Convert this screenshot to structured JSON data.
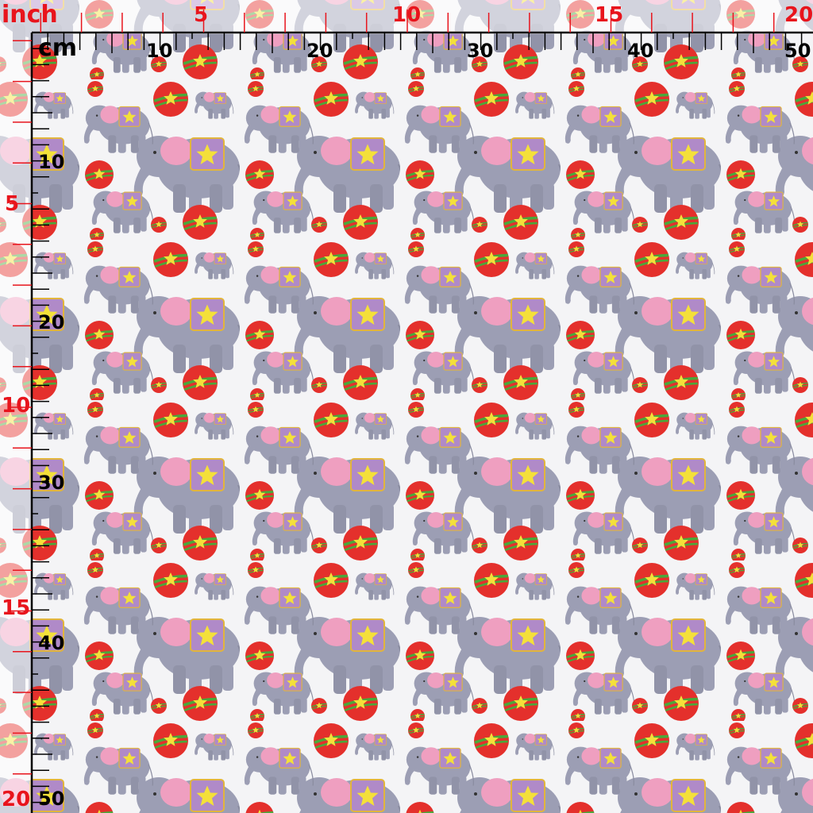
{
  "ruler": {
    "inch_unit_label": "inch",
    "cm_unit_label": "cm",
    "top_inch_labels": [
      "5",
      "10",
      "15",
      "20"
    ],
    "top_cm_labels": [
      "10",
      "20",
      "30",
      "40",
      "50"
    ],
    "left_inch_labels": [
      "5",
      "10",
      "15",
      "20"
    ],
    "left_cm_labels": [
      "10",
      "20",
      "30",
      "40",
      "50"
    ],
    "colors": {
      "inch": "#e8141c",
      "cm": "#000000"
    }
  },
  "fabric": {
    "motif": "circus elephants balancing on red star balls",
    "colors": {
      "background": "#f4f4f6",
      "elephant": "#9c9eb4",
      "ear": "#ef9fc0",
      "blanket": "#b08ac8",
      "star": "#f4e03a",
      "ball": "#e4302c",
      "stripe": "#4aa83a"
    }
  }
}
